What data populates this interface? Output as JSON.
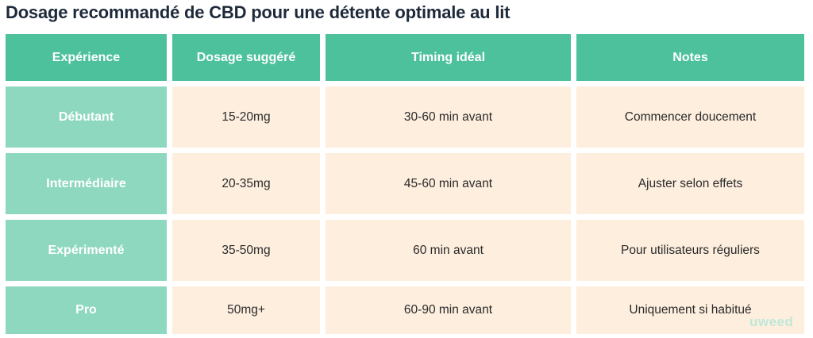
{
  "title": "Dosage recommandé de CBD pour une détente optimale au lit",
  "table": {
    "headers": [
      "Expérience",
      "Dosage suggéré",
      "Timing idéal",
      "Notes"
    ],
    "rows": [
      [
        "Débutant",
        "15-20mg",
        "30-60 min avant",
        "Commencer doucement"
      ],
      [
        "Intermédiaire",
        "20-35mg",
        "45-60 min avant",
        "Ajuster selon effets"
      ],
      [
        "Expérimenté",
        "35-50mg",
        "60 min avant",
        "Pour utilisateurs réguliers"
      ],
      [
        "Pro",
        "50mg+",
        "60-90 min avant",
        "Uniquement si habitué"
      ]
    ]
  },
  "logo_text": "uweed",
  "colors": {
    "header_bg": "#4cc19b",
    "level_bg": "#8ed8bf",
    "cell_bg": "#fdeede",
    "title_text": "#1e2a3a"
  }
}
